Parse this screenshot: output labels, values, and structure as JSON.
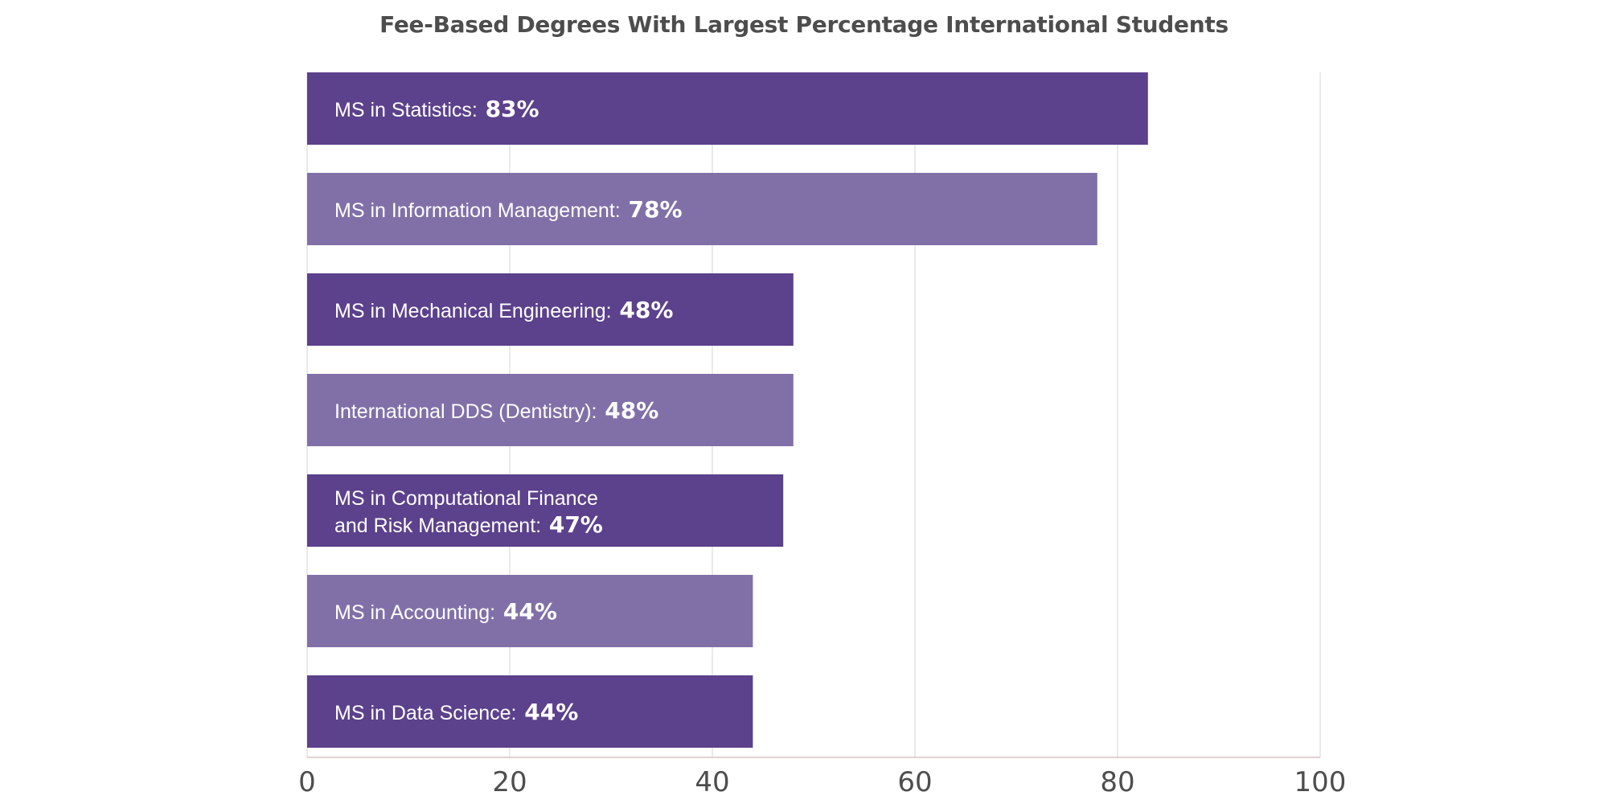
{
  "chart_data": {
    "type": "bar",
    "orientation": "horizontal",
    "title": "Fee-Based Degrees With Largest Percentage International Students",
    "xlabel": "",
    "ylabel": "",
    "xlim": [
      0,
      100
    ],
    "grid": true,
    "x_ticks": [
      "0",
      "20",
      "40",
      "60",
      "80",
      "100"
    ],
    "categories": [
      "MS in Statistics",
      "MS in Information Management",
      "MS in Mechanical Engineering",
      "International DDS (Dentistry)",
      "MS in Computational Finance and Risk Management",
      "MS in Accounting",
      "MS in Data Science"
    ],
    "values": [
      83,
      78,
      48,
      48,
      47,
      44,
      44
    ],
    "bars": [
      {
        "label_lines": [
          "MS in Statistics:"
        ],
        "value_text": "83%",
        "value": 83
      },
      {
        "label_lines": [
          "MS in Information Management:"
        ],
        "value_text": "78%",
        "value": 78
      },
      {
        "label_lines": [
          "MS in Mechanical Engineering:"
        ],
        "value_text": "48%",
        "value": 48
      },
      {
        "label_lines": [
          "International DDS (Dentistry):"
        ],
        "value_text": "48%",
        "value": 48
      },
      {
        "label_lines": [
          "MS in Computational Finance",
          "and Risk Management:"
        ],
        "value_text": "47%",
        "value": 47
      },
      {
        "label_lines": [
          "MS in Accounting:"
        ],
        "value_text": "44%",
        "value": 44
      },
      {
        "label_lines": [
          "MS in Data Science:"
        ],
        "value_text": "44%",
        "value": 44
      }
    ],
    "colors": {
      "bar_dark": "#5c418c",
      "bar_light": "#8170a8",
      "grid": "#e3e3e3",
      "axis": "#d9c3c3",
      "tick_text": "#4d4d4d",
      "label_text": "#ffffff"
    }
  }
}
